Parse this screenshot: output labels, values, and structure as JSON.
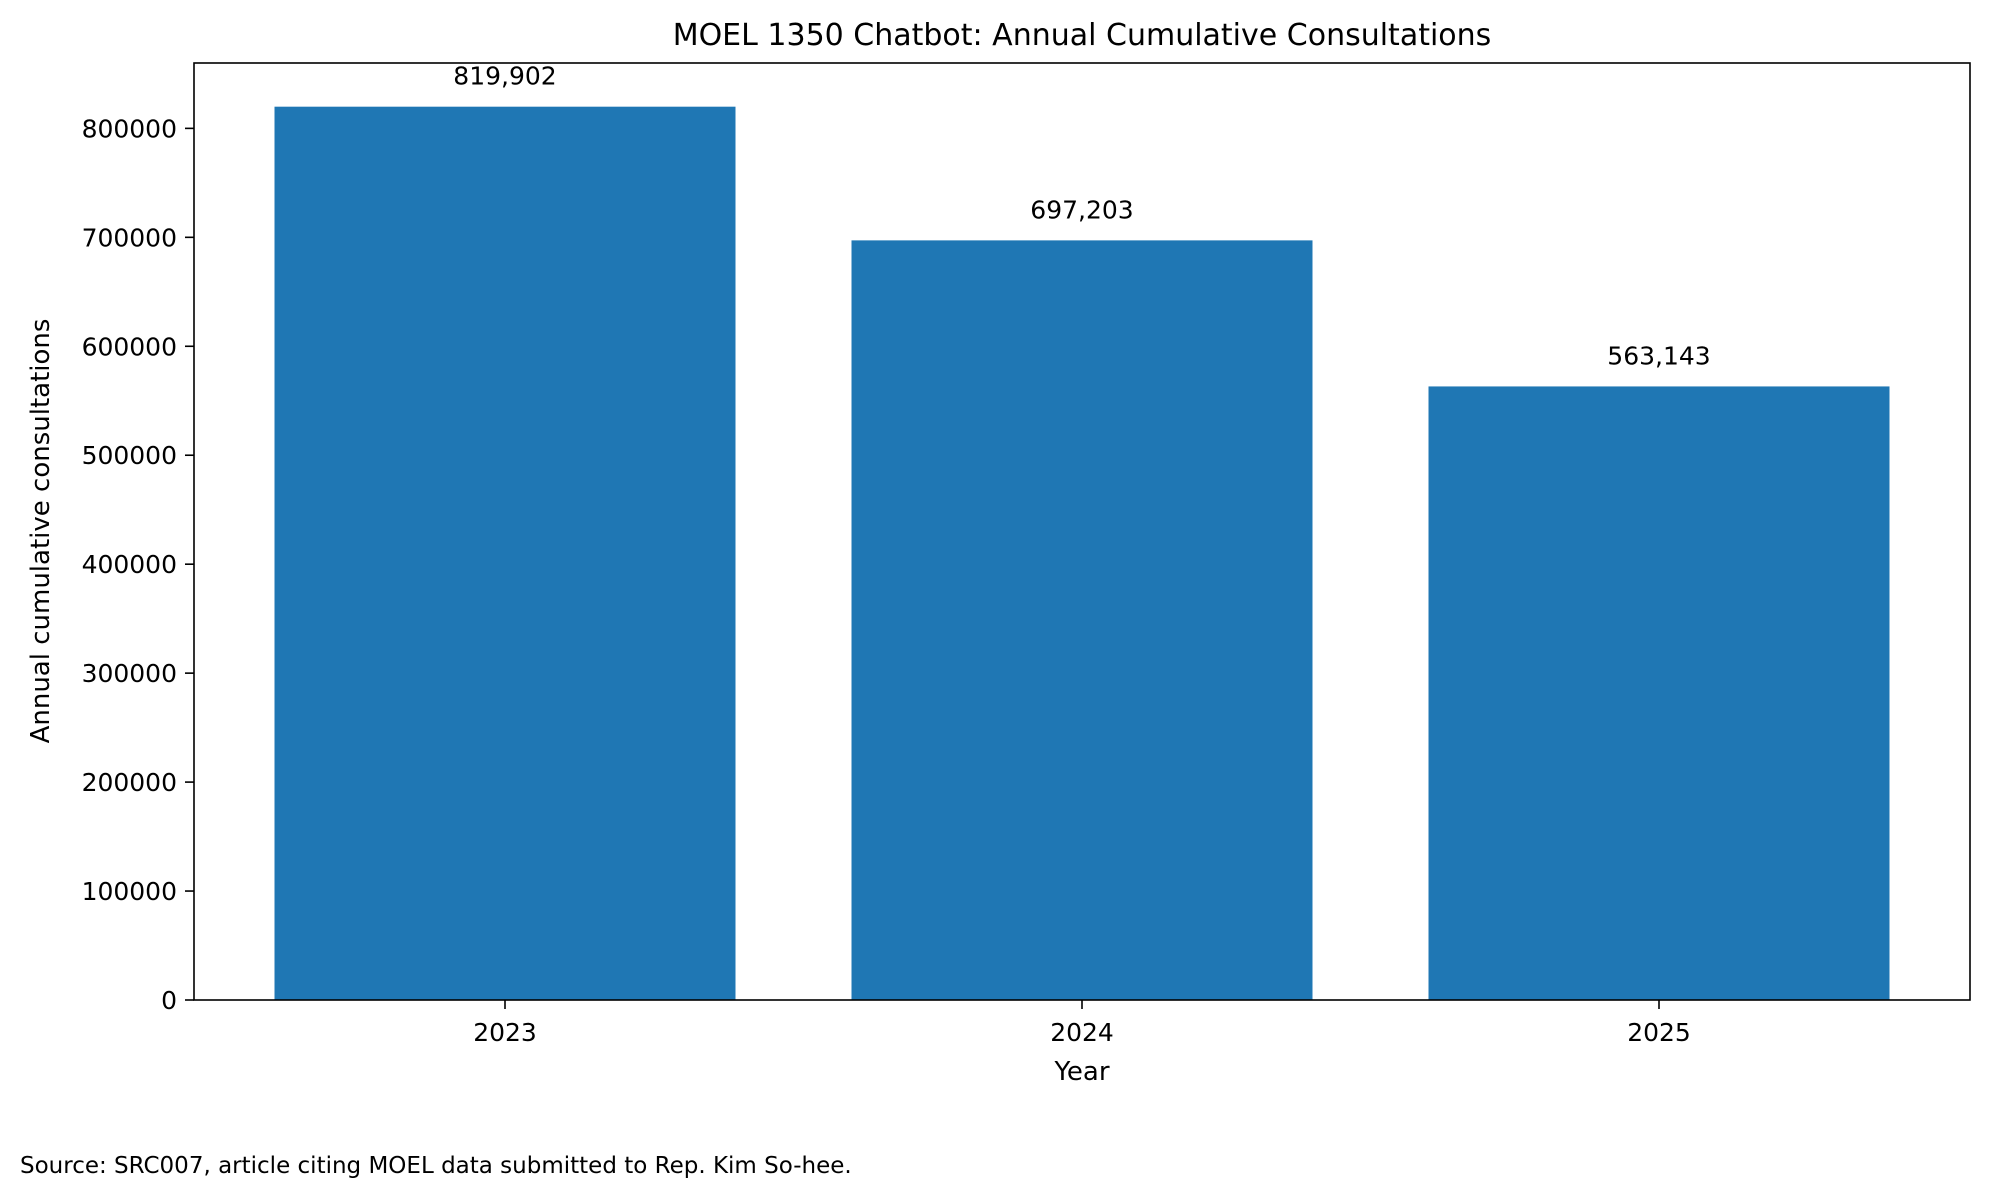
{
  "chart_data": {
    "type": "bar",
    "title": "MOEL 1350 Chatbot: Annual Cumulative Consultations",
    "xlabel": "Year",
    "ylabel": "Annual cumulative consultations",
    "categories": [
      "2023",
      "2024",
      "2025"
    ],
    "values": [
      819902,
      697203,
      563143
    ],
    "data_labels": [
      "819,902",
      "697,203",
      "563,143"
    ],
    "yticks": [
      0,
      100000,
      200000,
      300000,
      400000,
      500000,
      600000,
      700000,
      800000
    ],
    "ylim": [
      0,
      860000
    ],
    "grid": false,
    "legend": "none",
    "bar_color": "#1f77b4"
  },
  "source_note": "Source: SRC007, article citing MOEL data submitted to Rep. Kim So-hee."
}
